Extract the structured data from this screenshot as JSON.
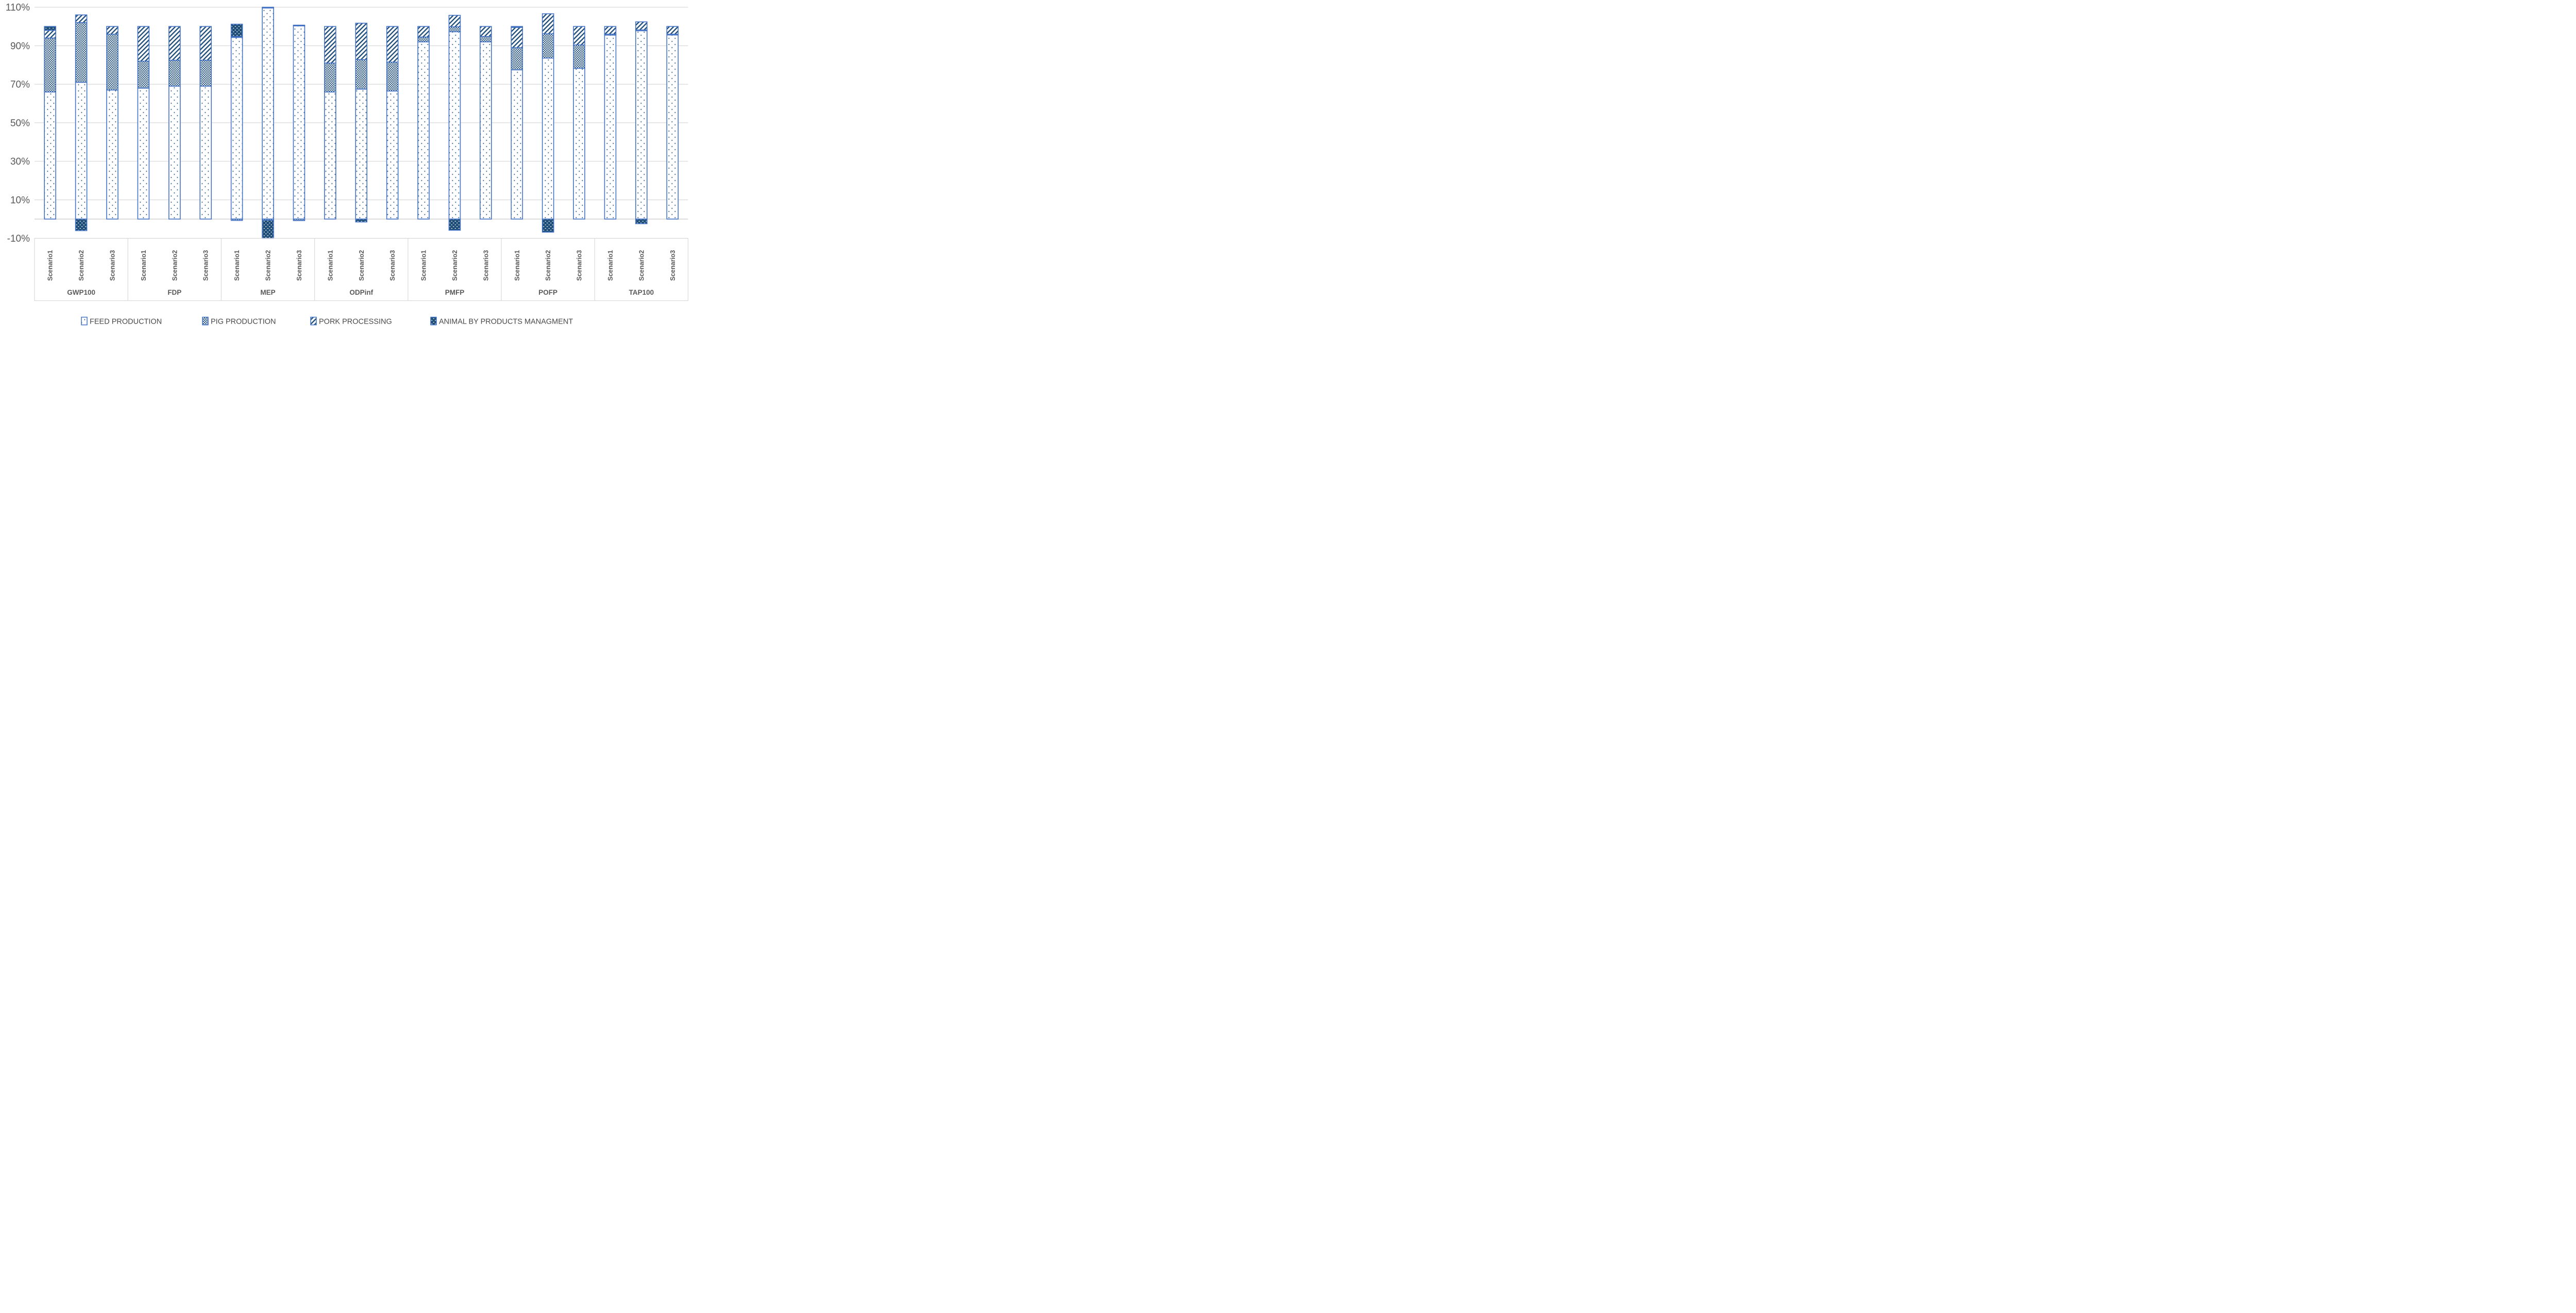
{
  "chart_data": {
    "type": "bar",
    "stacked": true,
    "orientation": "vertical",
    "categories": [
      "GWP100",
      "FDP",
      "MEP",
      "ODPinf",
      "PMFP",
      "POFP",
      "TAP100"
    ],
    "subcategories": [
      "Scenario1",
      "Scenario2",
      "Scenario3"
    ],
    "series": [
      {
        "name": "FEED PRODUCTION",
        "pattern": "feed-dots",
        "values": [
          [
            66,
            71,
            67
          ],
          [
            68,
            69,
            69
          ],
          [
            94.3,
            109.6,
            100.3
          ],
          [
            66,
            67.5,
            66.5
          ],
          [
            92,
            97.3,
            92
          ],
          [
            77.5,
            83.6,
            78.3
          ],
          [
            95.5,
            97.8,
            95.6
          ]
        ]
      },
      {
        "name": "PIG PRODUCTION",
        "pattern": "pig-checker",
        "values": [
          [
            28,
            31,
            29
          ],
          [
            14,
            13.5,
            13.5
          ],
          [
            -0.7,
            -0.6,
            -0.8
          ],
          [
            15,
            15.3,
            15
          ],
          [
            2.5,
            2.5,
            2.8
          ],
          [
            11.5,
            12.6,
            12.1
          ],
          [
            0.5,
            0.4,
            0.4
          ]
        ]
      },
      {
        "name": "PORK PROCESSING",
        "pattern": "pork-diagonal",
        "values": [
          [
            4,
            4,
            4
          ],
          [
            18,
            17.5,
            17.5
          ],
          [
            0.4,
            0.4,
            0.4
          ],
          [
            19,
            18.9,
            18.5
          ],
          [
            5.5,
            6,
            5.2
          ],
          [
            10.5,
            10.4,
            9.6
          ],
          [
            4,
            4.2,
            4
          ]
        ]
      },
      {
        "name": "ANIMAL BY PRODUCTS MANAGMENT",
        "pattern": "animal-dark",
        "values": [
          [
            2,
            -6,
            0
          ],
          [
            0,
            0,
            0
          ],
          [
            6.5,
            -9.4,
            0
          ],
          [
            0,
            -1.5,
            0
          ],
          [
            0,
            -5.8,
            0
          ],
          [
            0.5,
            -6.8,
            0
          ],
          [
            0,
            -2.4,
            0
          ]
        ]
      }
    ],
    "y_axis": {
      "min": -10,
      "max": 110,
      "tick_step": 20,
      "unit": "%",
      "tick_labels": [
        "110%",
        "90%",
        "70%",
        "50%",
        "30%",
        "10%",
        "-10%"
      ]
    },
    "grid": true,
    "legend_position": "bottom",
    "colors": {
      "pattern_ink": "#1F4E79",
      "bar_border": "#4472C4",
      "gridline": "#D9D9D9",
      "zero_line": "#C9C9C9",
      "axis_text": "#595959",
      "legend_text": "#494949",
      "background": "#FFFFFF"
    }
  }
}
